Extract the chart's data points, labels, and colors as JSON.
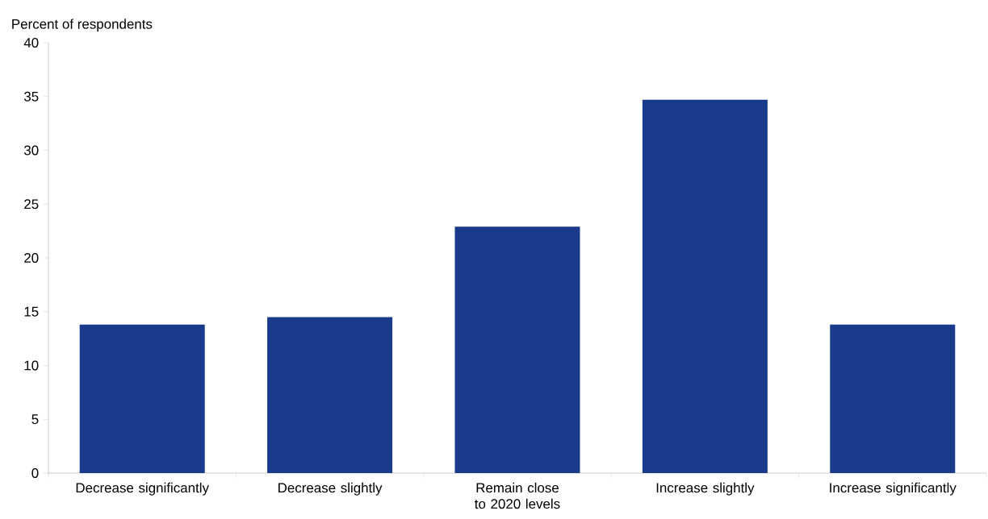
{
  "chart_data": {
    "type": "bar",
    "ylabel": "Percent of respondents",
    "categories": [
      "Decrease significantly",
      "Decrease slightly",
      "Remain close to 2020 levels",
      "Increase slightly",
      "Increase significantly"
    ],
    "values": [
      13.8,
      14.5,
      22.9,
      34.7,
      13.8
    ],
    "color": "#1a3a8c",
    "ylim": [
      0,
      40
    ],
    "yticks": [
      0,
      5,
      10,
      15,
      20,
      25,
      30,
      35,
      40
    ]
  }
}
